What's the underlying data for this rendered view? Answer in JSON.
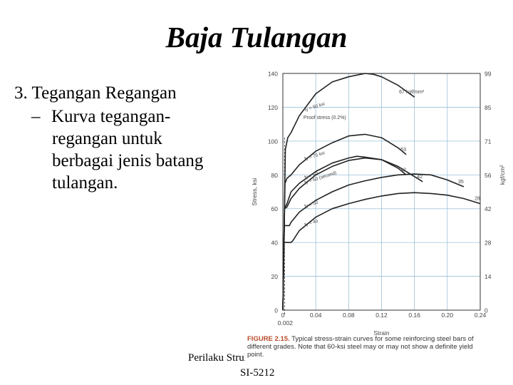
{
  "slide": {
    "title": "Baja Tulangan",
    "bullet": "3.  Tegangan Regangan",
    "sub_dash": "–",
    "sub_lines": [
      "Kurva tegangan-",
      "regangan untuk",
      "berbagai jenis batang",
      "tulangan."
    ],
    "footer_left": "Perilaku Struktur",
    "footer_code": "SI-5212"
  },
  "figure": {
    "caption_label": "FIGURE 2.15.",
    "caption_text": "Typical stress-strain curves for some reinforcing steel bars of different grades. Note that 60-ksi steel may or may not show a definite yield point."
  },
  "chart_data": {
    "type": "line",
    "xlabel": "Strain",
    "ylabel": "Stress, ksi",
    "y2label": "kgf/cm²",
    "xlim": [
      0,
      0.24
    ],
    "ylim": [
      0,
      140
    ],
    "xticks": [
      "0",
      "0.04",
      "0.08",
      "0.12",
      "0.16",
      "0.20",
      "0.24"
    ],
    "xticks_values": [
      0,
      0.04,
      0.08,
      0.12,
      0.16,
      0.2,
      0.24
    ],
    "extra_xtick": {
      "label": "0.002",
      "value": 0.002
    },
    "yticks": [
      0,
      20,
      40,
      60,
      80,
      100,
      120,
      140
    ],
    "y2ticks": [
      "0",
      "14",
      "28",
      "42",
      "56",
      "71",
      "85",
      "99"
    ],
    "y2ticks_values": [
      0,
      20,
      40,
      60,
      80,
      100,
      120,
      140
    ],
    "grid": true,
    "series": [
      {
        "name": "fy = 90 ksi",
        "x": [
          0,
          0.003,
          0.006,
          0.01,
          0.02,
          0.04,
          0.06,
          0.08,
          0.1,
          0.11,
          0.12,
          0.14,
          0.16
        ],
        "y": [
          0,
          95,
          102,
          105,
          115,
          128,
          135,
          138,
          140,
          139.5,
          138,
          133,
          126
        ],
        "end_label": "67 kgf/mm²"
      },
      {
        "name": "fy = 75 ksi",
        "x": [
          0,
          0.0026,
          0.005,
          0.01,
          0.02,
          0.04,
          0.06,
          0.08,
          0.1,
          0.12,
          0.14,
          0.15
        ],
        "y": [
          0,
          75,
          78,
          80,
          86,
          94,
          99,
          103,
          104,
          102,
          96,
          92
        ],
        "end_label": "53"
      },
      {
        "name": "fy = 60",
        "x": [
          0,
          0.002,
          0.005,
          0.01,
          0.02,
          0.04,
          0.06,
          0.08,
          0.09,
          0.1,
          0.12,
          0.14,
          0.16,
          0.17
        ],
        "y": [
          0,
          60,
          63,
          70,
          75,
          82,
          87,
          90,
          91,
          90.5,
          89,
          85,
          79,
          76
        ],
        "end_label": "42"
      },
      {
        "name": "fy = 60 (second)",
        "x": [
          0,
          0.002,
          0.005,
          0.01,
          0.02,
          0.04,
          0.06,
          0.08,
          0.1,
          0.12,
          0.14,
          0.15
        ],
        "y": [
          0,
          60,
          61,
          66,
          72,
          80,
          85,
          88.5,
          90,
          89,
          84,
          80
        ],
        "end_label": "42"
      },
      {
        "name": "fy = 50",
        "x": [
          0,
          0.0017,
          0.008,
          0.01,
          0.02,
          0.04,
          0.06,
          0.08,
          0.1,
          0.12,
          0.14,
          0.16,
          0.18,
          0.2,
          0.22
        ],
        "y": [
          0,
          50,
          50,
          52,
          58,
          65,
          70,
          74,
          76.5,
          78.5,
          80,
          80.5,
          80,
          77,
          73
        ],
        "end_label": "35"
      },
      {
        "name": "fy = 40",
        "x": [
          0,
          0.0014,
          0.01,
          0.012,
          0.02,
          0.04,
          0.06,
          0.08,
          0.1,
          0.12,
          0.14,
          0.16,
          0.18,
          0.2,
          0.22,
          0.24
        ],
        "y": [
          0,
          40,
          40,
          41,
          47,
          55,
          60,
          63,
          65.5,
          67.5,
          69,
          69.5,
          69,
          68,
          66,
          63
        ],
        "end_label": "28"
      }
    ],
    "annotations": [
      {
        "text": "Proof stress (0.2%)",
        "x": 0.025,
        "y": 113
      }
    ]
  }
}
